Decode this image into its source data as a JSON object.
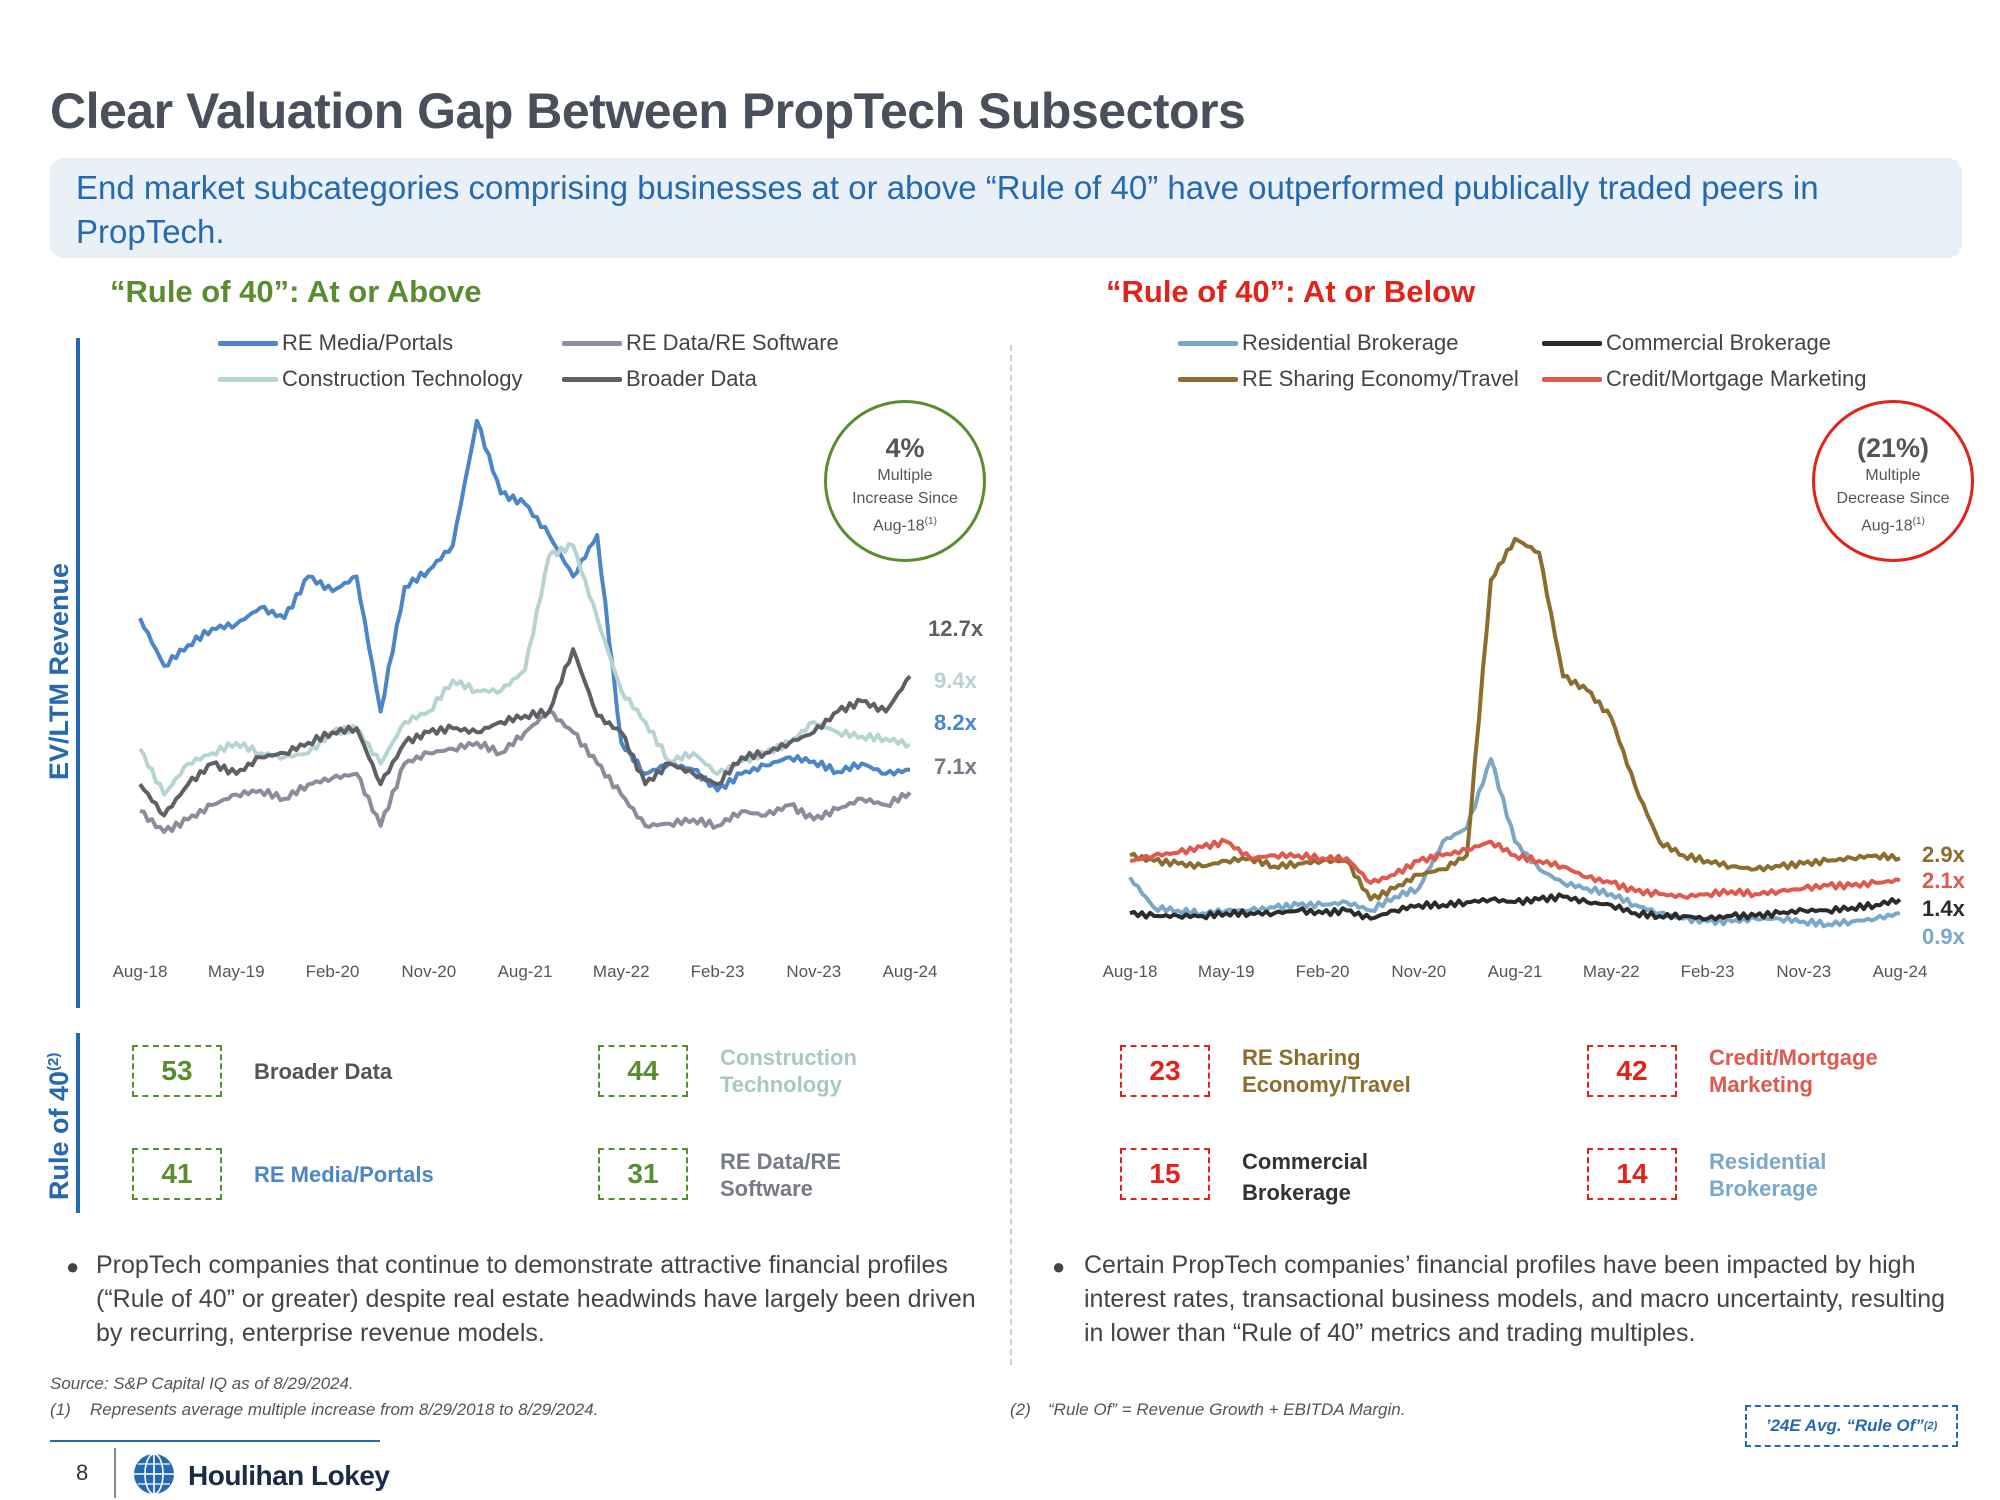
{
  "page": {
    "title": "Clear Valuation Gap Between PropTech Subsectors",
    "subtitle": "End market subcategories comprising businesses at or above “Rule of 40” have outperformed publically traded peers in PropTech.",
    "left_section_title": "“Rule of 40”: At or Above",
    "right_section_title": "“Rule of 40”: At or Below",
    "y_axis_label": "EV/LTM Revenue",
    "rule_label": "Rule of 40",
    "rule_label_sup": "(2)",
    "colors": {
      "green": "#5a8d2e",
      "red": "#e32219",
      "blue": "#2569b0"
    }
  },
  "left_circle": {
    "value": "4%",
    "line1": "Multiple",
    "line2": "Increase Since",
    "line3": "Aug-18",
    "sup": "(1)"
  },
  "right_circle": {
    "value": "(21%)",
    "line1": "Multiple",
    "line2": "Decrease Since",
    "line3": "Aug-18",
    "sup": "(1)"
  },
  "chart_data": [
    {
      "type": "line",
      "x_ticks": [
        "Aug-18",
        "May-19",
        "Feb-20",
        "Nov-20",
        "Aug-21",
        "May-22",
        "Feb-23",
        "Nov-23",
        "Aug-24"
      ],
      "x": [
        0,
        0.5,
        1,
        1.5,
        2,
        2.5,
        3,
        3.5,
        4,
        4.5,
        5,
        5.5,
        6,
        6.5,
        7,
        7.5,
        8,
        8.5,
        9,
        9.5,
        10,
        10.5,
        11,
        11.5,
        12,
        12.5,
        13,
        13.5,
        14,
        14.5,
        15,
        15.5,
        16
      ],
      "ylim": [
        0,
        26
      ],
      "series": [
        {
          "name": "RE Media/Portals",
          "color": "#4a86c8",
          "end_label": "8.2x",
          "values": [
            15.5,
            13.2,
            14.2,
            15.0,
            15.2,
            16.0,
            15.5,
            17.5,
            16.8,
            17.5,
            11.0,
            17.0,
            17.8,
            19.0,
            25.0,
            21.5,
            21.0,
            19.5,
            17.5,
            19.5,
            9.5,
            8.0,
            8.5,
            8.2,
            7.2,
            8.0,
            8.4,
            8.8,
            8.6,
            8.1,
            8.5,
            8.0,
            8.2
          ]
        },
        {
          "name": "Construction Technology",
          "color": "#b6d4d2",
          "end_label": "9.4x",
          "values": [
            9.2,
            7.0,
            8.5,
            9.0,
            9.5,
            9.0,
            8.8,
            9.0,
            10.0,
            10.2,
            8.5,
            10.5,
            11.0,
            12.5,
            12.0,
            12.0,
            13.0,
            18.5,
            19.0,
            15.5,
            12.0,
            10.5,
            8.6,
            9.0,
            8.0,
            8.6,
            9.0,
            9.5,
            10.5,
            10.0,
            9.8,
            9.7,
            9.4
          ]
        },
        {
          "name": "RE Data/RE Software",
          "color": "#8a8d9c",
          "end_label": "7.1x",
          "values": [
            6.2,
            5.2,
            5.8,
            6.5,
            7.0,
            7.2,
            6.8,
            7.5,
            7.8,
            8.0,
            5.5,
            8.5,
            9.0,
            9.2,
            9.5,
            9.0,
            10.0,
            11.0,
            10.0,
            8.5,
            7.0,
            5.5,
            5.6,
            5.8,
            5.5,
            6.2,
            6.0,
            6.5,
            5.8,
            6.3,
            6.8,
            6.5,
            7.1
          ]
        },
        {
          "name": "Broader Data",
          "color": "#5f6066",
          "end_label": "12.7x",
          "values": [
            7.5,
            6.0,
            7.5,
            8.5,
            8.0,
            8.8,
            9.0,
            9.5,
            10.0,
            10.2,
            7.5,
            9.5,
            10.0,
            10.2,
            10.0,
            10.5,
            10.8,
            11.0,
            14.0,
            10.8,
            10.0,
            7.5,
            8.5,
            8.0,
            7.5,
            8.8,
            9.0,
            9.5,
            10.0,
            11.0,
            11.5,
            11.0,
            12.7
          ]
        }
      ]
    },
    {
      "type": "line",
      "x_ticks": [
        "Aug-18",
        "May-19",
        "Feb-20",
        "Nov-20",
        "Aug-21",
        "May-22",
        "Feb-23",
        "Nov-23",
        "Aug-24"
      ],
      "x": [
        0,
        0.5,
        1,
        1.5,
        2,
        2.5,
        3,
        3.5,
        4,
        4.5,
        5,
        5.5,
        6,
        6.5,
        7,
        7.5,
        8,
        8.5,
        9,
        9.5,
        10,
        10.5,
        11,
        11.5,
        12,
        12.5,
        13,
        13.5,
        14,
        14.5,
        15,
        15.5,
        16
      ],
      "ylim": [
        0,
        17
      ],
      "series": [
        {
          "name": "Residential Brokerage",
          "color": "#7aa8c8",
          "end_label": "0.9x",
          "values": [
            2.2,
            1.1,
            1.0,
            0.9,
            1.0,
            1.0,
            1.1,
            1.2,
            1.2,
            1.3,
            1.0,
            1.5,
            1.8,
            3.5,
            4.0,
            6.5,
            3.5,
            2.5,
            2.0,
            1.8,
            1.6,
            1.2,
            0.9,
            0.7,
            0.6,
            0.6,
            0.7,
            0.7,
            0.6,
            0.5,
            0.6,
            0.7,
            0.9
          ]
        },
        {
          "name": "Commercial Brokerage",
          "color": "#2b2b2b",
          "end_label": "1.4x",
          "values": [
            0.9,
            0.8,
            0.8,
            0.8,
            0.9,
            0.9,
            0.9,
            1.0,
            0.9,
            1.0,
            0.7,
            1.0,
            1.2,
            1.2,
            1.3,
            1.4,
            1.3,
            1.4,
            1.5,
            1.3,
            1.2,
            0.9,
            0.8,
            0.8,
            0.7,
            0.8,
            0.8,
            0.9,
            1.0,
            1.0,
            1.1,
            1.2,
            1.4
          ]
        },
        {
          "name": "RE Sharing Economy/Travel",
          "color": "#8b6e2e",
          "end_label": "2.9x",
          "values": [
            3.0,
            2.8,
            2.7,
            2.6,
            2.8,
            2.9,
            2.6,
            2.7,
            2.8,
            2.8,
            1.4,
            1.8,
            2.3,
            2.5,
            3.0,
            13.0,
            14.5,
            14.0,
            9.5,
            9.0,
            8.0,
            5.5,
            3.5,
            3.0,
            2.8,
            2.6,
            2.5,
            2.6,
            2.7,
            2.8,
            2.9,
            3.0,
            2.9
          ]
        },
        {
          "name": "Credit/Mortgage Marketing",
          "color": "#de5a4f",
          "end_label": "2.1x",
          "values": [
            2.8,
            3.0,
            3.1,
            3.3,
            3.5,
            2.9,
            3.0,
            3.0,
            2.9,
            2.9,
            2.0,
            2.3,
            2.8,
            3.0,
            3.2,
            3.5,
            3.0,
            2.8,
            2.6,
            2.2,
            2.0,
            1.7,
            1.6,
            1.5,
            1.6,
            1.7,
            1.6,
            1.7,
            1.8,
            1.9,
            1.9,
            2.0,
            2.1
          ]
        }
      ]
    }
  ],
  "scores_left": [
    {
      "value": "53",
      "label": "Broader Data",
      "color": "#555555"
    },
    {
      "value": "44",
      "label": "Construction Technology",
      "label_line1": "Construction",
      "label_line2": "Technology",
      "color": "#a8c8c6"
    },
    {
      "value": "41",
      "label": "RE Media/Portals",
      "color": "#4a86c8"
    },
    {
      "value": "31",
      "label": "RE Data/RE Software",
      "label_line1": "RE Data/RE",
      "label_line2": "Software",
      "color": "#777a88"
    }
  ],
  "scores_right": [
    {
      "value": "23",
      "label_line1": "RE Sharing",
      "label_line2": "Economy/Travel",
      "color": "#8b6e2e"
    },
    {
      "value": "42",
      "label_line1": "Credit/Mortgage",
      "label_line2": "Marketing",
      "color": "#de5a4f"
    },
    {
      "value": "15",
      "label_line1": "Commercial",
      "label_line2": "Brokerage",
      "color": "#333333"
    },
    {
      "value": "14",
      "label_line1": "Residential",
      "label_line2": "Brokerage",
      "color": "#7aa8c8"
    }
  ],
  "bullets": {
    "left": "PropTech companies that continue to demonstrate attractive financial profiles (“Rule of 40” or greater) despite real estate headwinds have largely been driven by recurring, enterprise revenue models.",
    "right": "Certain PropTech companies’ financial profiles have been impacted by high interest rates, transactional business models, and macro uncertainty, resulting in lower than “Rule of 40” metrics and trading multiples."
  },
  "footnotes": {
    "source": "Source: S&P Capital IQ as of 8/29/2024.",
    "note1_num": "(1)",
    "note1": "Represents average multiple increase from 8/29/2018 to 8/29/2024.",
    "note2_num": "(2)",
    "note2": "“Rule Of” = Revenue Growth + EBITDA Margin.",
    "badge": "’24E Avg. “Rule Of”",
    "badge_sup": "(2)"
  },
  "footer": {
    "page_number": "8",
    "logo": "Houlihan Lokey"
  }
}
